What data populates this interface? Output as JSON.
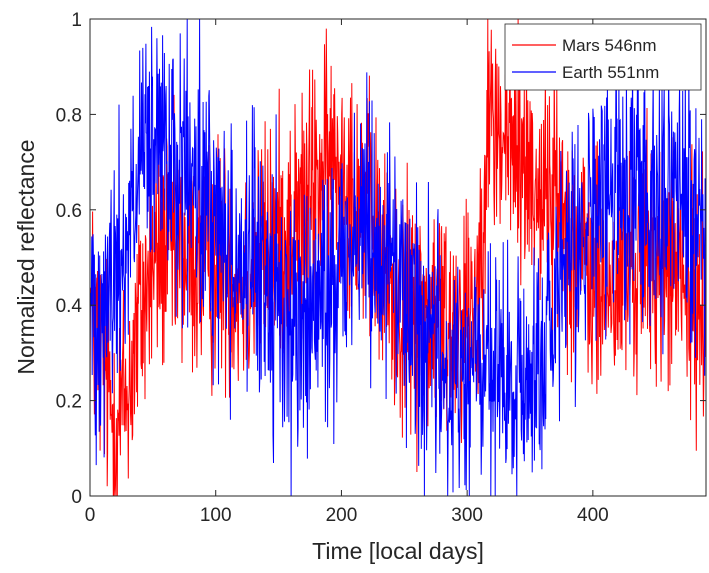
{
  "chart_data": {
    "type": "line",
    "title": "",
    "xlabel": "Time [local days]",
    "ylabel": "Normalized reflectance",
    "xlim": [
      0,
      490
    ],
    "ylim": [
      0,
      1
    ],
    "xticks": [
      "0",
      "100",
      "200",
      "300",
      "400"
    ],
    "yticks": [
      "0",
      "0.2",
      "0.4",
      "0.6",
      "0.8",
      "1"
    ],
    "grid": false,
    "legend_position": "top-right",
    "series": [
      {
        "name": "Mars 546nm",
        "color": "#ff0000",
        "x": [
          0,
          10,
          20,
          30,
          40,
          50,
          60,
          70,
          80,
          90,
          100,
          110,
          120,
          130,
          140,
          150,
          160,
          170,
          180,
          190,
          200,
          210,
          220,
          230,
          240,
          250,
          260,
          270,
          280,
          290,
          300,
          310,
          315,
          320,
          330,
          340,
          350,
          360,
          370,
          380,
          390,
          400,
          410,
          420,
          430,
          440,
          450,
          460,
          470,
          480,
          490
        ],
        "values": [
          0.4,
          0.28,
          0.15,
          0.22,
          0.38,
          0.48,
          0.52,
          0.5,
          0.5,
          0.47,
          0.5,
          0.48,
          0.45,
          0.48,
          0.52,
          0.55,
          0.56,
          0.6,
          0.66,
          0.68,
          0.7,
          0.66,
          0.6,
          0.5,
          0.42,
          0.38,
          0.38,
          0.38,
          0.37,
          0.37,
          0.4,
          0.46,
          0.78,
          0.78,
          0.74,
          0.72,
          0.68,
          0.64,
          0.62,
          0.58,
          0.5,
          0.45,
          0.42,
          0.45,
          0.48,
          0.5,
          0.5,
          0.48,
          0.45,
          0.4,
          0.42
        ],
        "noise_amplitude": 0.13
      },
      {
        "name": "Earth 551nm",
        "color": "#0000ff",
        "x": [
          0,
          10,
          20,
          30,
          40,
          50,
          60,
          70,
          80,
          90,
          100,
          110,
          120,
          130,
          140,
          150,
          160,
          170,
          180,
          190,
          200,
          210,
          220,
          230,
          240,
          250,
          260,
          270,
          280,
          290,
          300,
          310,
          320,
          330,
          340,
          350,
          360,
          370,
          380,
          390,
          400,
          410,
          420,
          430,
          440,
          450,
          460,
          470,
          480,
          490
        ],
        "values": [
          0.38,
          0.42,
          0.45,
          0.55,
          0.68,
          0.72,
          0.7,
          0.68,
          0.65,
          0.62,
          0.58,
          0.52,
          0.5,
          0.48,
          0.45,
          0.4,
          0.37,
          0.35,
          0.38,
          0.42,
          0.5,
          0.55,
          0.57,
          0.55,
          0.5,
          0.42,
          0.38,
          0.32,
          0.25,
          0.25,
          0.26,
          0.27,
          0.25,
          0.22,
          0.2,
          0.25,
          0.3,
          0.35,
          0.45,
          0.55,
          0.6,
          0.62,
          0.65,
          0.65,
          0.66,
          0.65,
          0.64,
          0.63,
          0.6,
          0.56
        ],
        "noise_amplitude": 0.14
      }
    ]
  }
}
